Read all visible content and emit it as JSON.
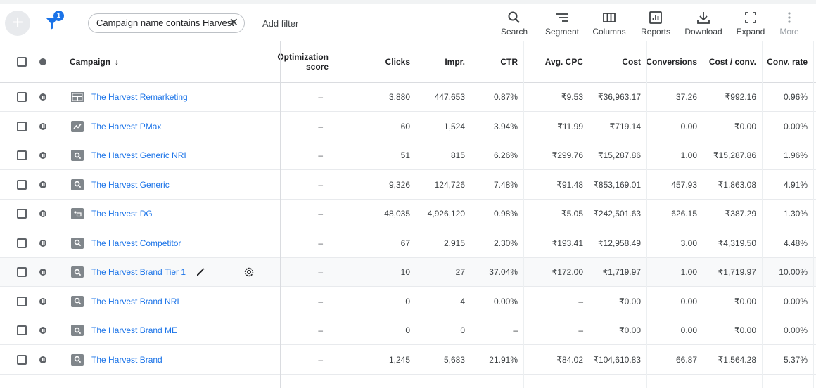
{
  "toolbar": {
    "add_label": "+",
    "filter_count": "1",
    "filter_chip": "Campaign name contains Harvest",
    "filter_chip_close": "✕",
    "add_filter": "Add filter",
    "tools": [
      {
        "label": "Search",
        "icon": "search-icon"
      },
      {
        "label": "Segment",
        "icon": "segment-icon"
      },
      {
        "label": "Columns",
        "icon": "columns-icon"
      },
      {
        "label": "Reports",
        "icon": "reports-icon"
      },
      {
        "label": "Download",
        "icon": "download-icon"
      },
      {
        "label": "Expand",
        "icon": "expand-icon"
      },
      {
        "label": "More",
        "icon": "more-vert-icon"
      }
    ]
  },
  "table": {
    "headers": {
      "campaign": "Campaign",
      "sort_arrow": "↓",
      "opt_line1": "Optimization",
      "opt_line2": "score",
      "clicks": "Clicks",
      "impr": "Impr.",
      "ctr": "CTR",
      "avg_cpc": "Avg. CPC",
      "cost": "Cost",
      "conversions": "Conversions",
      "cost_conv": "Cost / conv.",
      "conv_rate": "Conv. rate"
    },
    "rows": [
      {
        "name": "The Harvest Remarketing",
        "type": "display",
        "opt": "–",
        "clicks": "3,880",
        "impr": "447,653",
        "ctr": "0.87%",
        "cpc": "₹9.53",
        "cost": "₹36,963.17",
        "conv": "37.26",
        "cost_conv": "₹992.16",
        "conv_rate": "0.96%"
      },
      {
        "name": "The Harvest PMax",
        "type": "pmax",
        "opt": "–",
        "clicks": "60",
        "impr": "1,524",
        "ctr": "3.94%",
        "cpc": "₹11.99",
        "cost": "₹719.14",
        "conv": "0.00",
        "cost_conv": "₹0.00",
        "conv_rate": "0.00%"
      },
      {
        "name": "The Harvest Generic NRI",
        "type": "search",
        "opt": "–",
        "clicks": "51",
        "impr": "815",
        "ctr": "6.26%",
        "cpc": "₹299.76",
        "cost": "₹15,287.86",
        "conv": "1.00",
        "cost_conv": "₹15,287.86",
        "conv_rate": "1.96%"
      },
      {
        "name": "The Harvest Generic",
        "type": "search",
        "opt": "–",
        "clicks": "9,326",
        "impr": "124,726",
        "ctr": "7.48%",
        "cpc": "₹91.48",
        "cost": "₹853,169.01",
        "conv": "457.93",
        "cost_conv": "₹1,863.08",
        "conv_rate": "4.91%"
      },
      {
        "name": "The Harvest DG",
        "type": "demandgen",
        "opt": "–",
        "clicks": "48,035",
        "impr": "4,926,120",
        "ctr": "0.98%",
        "cpc": "₹5.05",
        "cost": "₹242,501.63",
        "conv": "626.15",
        "cost_conv": "₹387.29",
        "conv_rate": "1.30%"
      },
      {
        "name": "The Harvest Competitor",
        "type": "search",
        "opt": "–",
        "clicks": "67",
        "impr": "2,915",
        "ctr": "2.30%",
        "cpc": "₹193.41",
        "cost": "₹12,958.49",
        "conv": "3.00",
        "cost_conv": "₹4,319.50",
        "conv_rate": "4.48%"
      },
      {
        "name": "The Harvest Brand Tier 1",
        "type": "search",
        "opt": "–",
        "clicks": "10",
        "impr": "27",
        "ctr": "37.04%",
        "cpc": "₹172.00",
        "cost": "₹1,719.97",
        "conv": "1.00",
        "cost_conv": "₹1,719.97",
        "conv_rate": "10.00%",
        "hover": true
      },
      {
        "name": "The Harvest Brand NRI",
        "type": "search",
        "opt": "–",
        "clicks": "0",
        "impr": "4",
        "ctr": "0.00%",
        "cpc": "–",
        "cost": "₹0.00",
        "conv": "0.00",
        "cost_conv": "₹0.00",
        "conv_rate": "0.00%"
      },
      {
        "name": "The Harvest Brand ME",
        "type": "search",
        "opt": "–",
        "clicks": "0",
        "impr": "0",
        "ctr": "–",
        "cpc": "–",
        "cost": "₹0.00",
        "conv": "0.00",
        "cost_conv": "₹0.00",
        "conv_rate": "0.00%"
      },
      {
        "name": "The Harvest Brand",
        "type": "search",
        "opt": "–",
        "clicks": "1,245",
        "impr": "5,683",
        "ctr": "21.91%",
        "cpc": "₹84.02",
        "cost": "₹104,610.83",
        "conv": "66.87",
        "cost_conv": "₹1,564.28",
        "conv_rate": "5.37%"
      }
    ]
  },
  "colors": {
    "link": "#1a73e8",
    "badge": "#1a73e8",
    "icon_grey": "#5f6368"
  }
}
